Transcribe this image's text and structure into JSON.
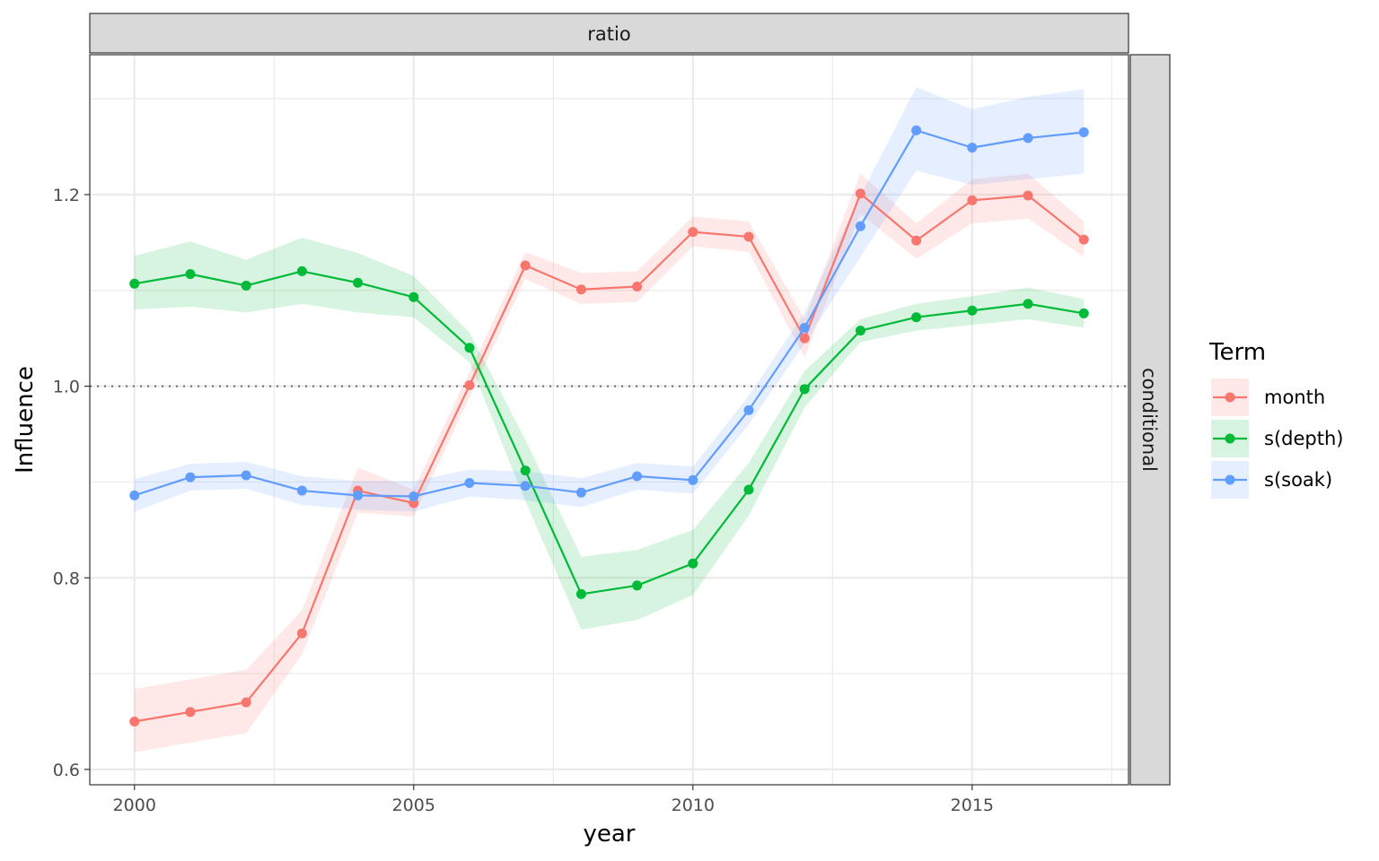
{
  "chart_data": {
    "type": "line",
    "facet_top": "ratio",
    "facet_right": "conditional",
    "xlabel": "year",
    "ylabel": "Influence",
    "xlim": [
      1999.2,
      2017.8
    ],
    "ylim": [
      0.584,
      1.346
    ],
    "x_ticks": [
      2000,
      2005,
      2010,
      2015
    ],
    "x_tick_labels": [
      "2000",
      "2005",
      "2010",
      "2015"
    ],
    "y_ticks": [
      0.6,
      0.8,
      1.0,
      1.2
    ],
    "y_tick_labels": [
      "0.6",
      "0.8",
      "1.0",
      "1.2"
    ],
    "reference_line": 1.0,
    "grid": true,
    "legend_title": "Term",
    "legend_position": "right",
    "x": [
      2000,
      2001,
      2002,
      2003,
      2004,
      2005,
      2006,
      2007,
      2008,
      2009,
      2010,
      2011,
      2012,
      2013,
      2014,
      2015,
      2016,
      2017
    ],
    "series": [
      {
        "name": "month",
        "color": "#F8766D",
        "values": [
          0.65,
          0.66,
          0.67,
          0.742,
          0.891,
          0.878,
          1.001,
          1.126,
          1.101,
          1.104,
          1.161,
          1.156,
          1.05,
          1.201,
          1.152,
          1.194,
          1.199,
          1.153
        ],
        "lower": [
          0.618,
          0.628,
          0.638,
          0.72,
          0.868,
          0.864,
          0.988,
          1.112,
          1.086,
          1.088,
          1.146,
          1.14,
          1.03,
          1.18,
          1.133,
          1.17,
          1.175,
          1.135
        ],
        "upper": [
          0.684,
          0.694,
          0.704,
          0.766,
          0.915,
          0.892,
          1.015,
          1.14,
          1.118,
          1.12,
          1.177,
          1.172,
          1.07,
          1.222,
          1.17,
          1.216,
          1.222,
          1.172
        ]
      },
      {
        "name": "s(depth)",
        "color": "#00BA38",
        "values": [
          1.107,
          1.117,
          1.105,
          1.12,
          1.108,
          1.093,
          1.04,
          0.912,
          0.783,
          0.792,
          0.815,
          0.892,
          0.997,
          1.058,
          1.072,
          1.079,
          1.086,
          1.076
        ],
        "lower": [
          1.08,
          1.083,
          1.077,
          1.086,
          1.077,
          1.072,
          1.025,
          0.88,
          0.746,
          0.756,
          0.782,
          0.865,
          0.978,
          1.046,
          1.058,
          1.064,
          1.07,
          1.061
        ],
        "upper": [
          1.136,
          1.151,
          1.132,
          1.155,
          1.139,
          1.115,
          1.056,
          0.944,
          0.822,
          0.829,
          0.85,
          0.92,
          1.016,
          1.07,
          1.086,
          1.094,
          1.103,
          1.091
        ]
      },
      {
        "name": "s(soak)",
        "color": "#619CFF",
        "values": [
          0.886,
          0.905,
          0.907,
          0.891,
          0.886,
          0.885,
          0.899,
          0.896,
          0.889,
          0.906,
          0.902,
          0.975,
          1.061,
          1.167,
          1.267,
          1.249,
          1.259,
          1.265
        ],
        "lower": [
          0.869,
          0.891,
          0.893,
          0.876,
          0.871,
          0.869,
          0.885,
          0.881,
          0.874,
          0.892,
          0.888,
          0.96,
          1.045,
          1.135,
          1.225,
          1.21,
          1.216,
          1.222
        ],
        "upper": [
          0.903,
          0.919,
          0.921,
          0.906,
          0.901,
          0.901,
          0.913,
          0.911,
          0.904,
          0.92,
          0.916,
          0.99,
          1.077,
          1.199,
          1.312,
          1.289,
          1.302,
          1.31
        ]
      }
    ]
  }
}
